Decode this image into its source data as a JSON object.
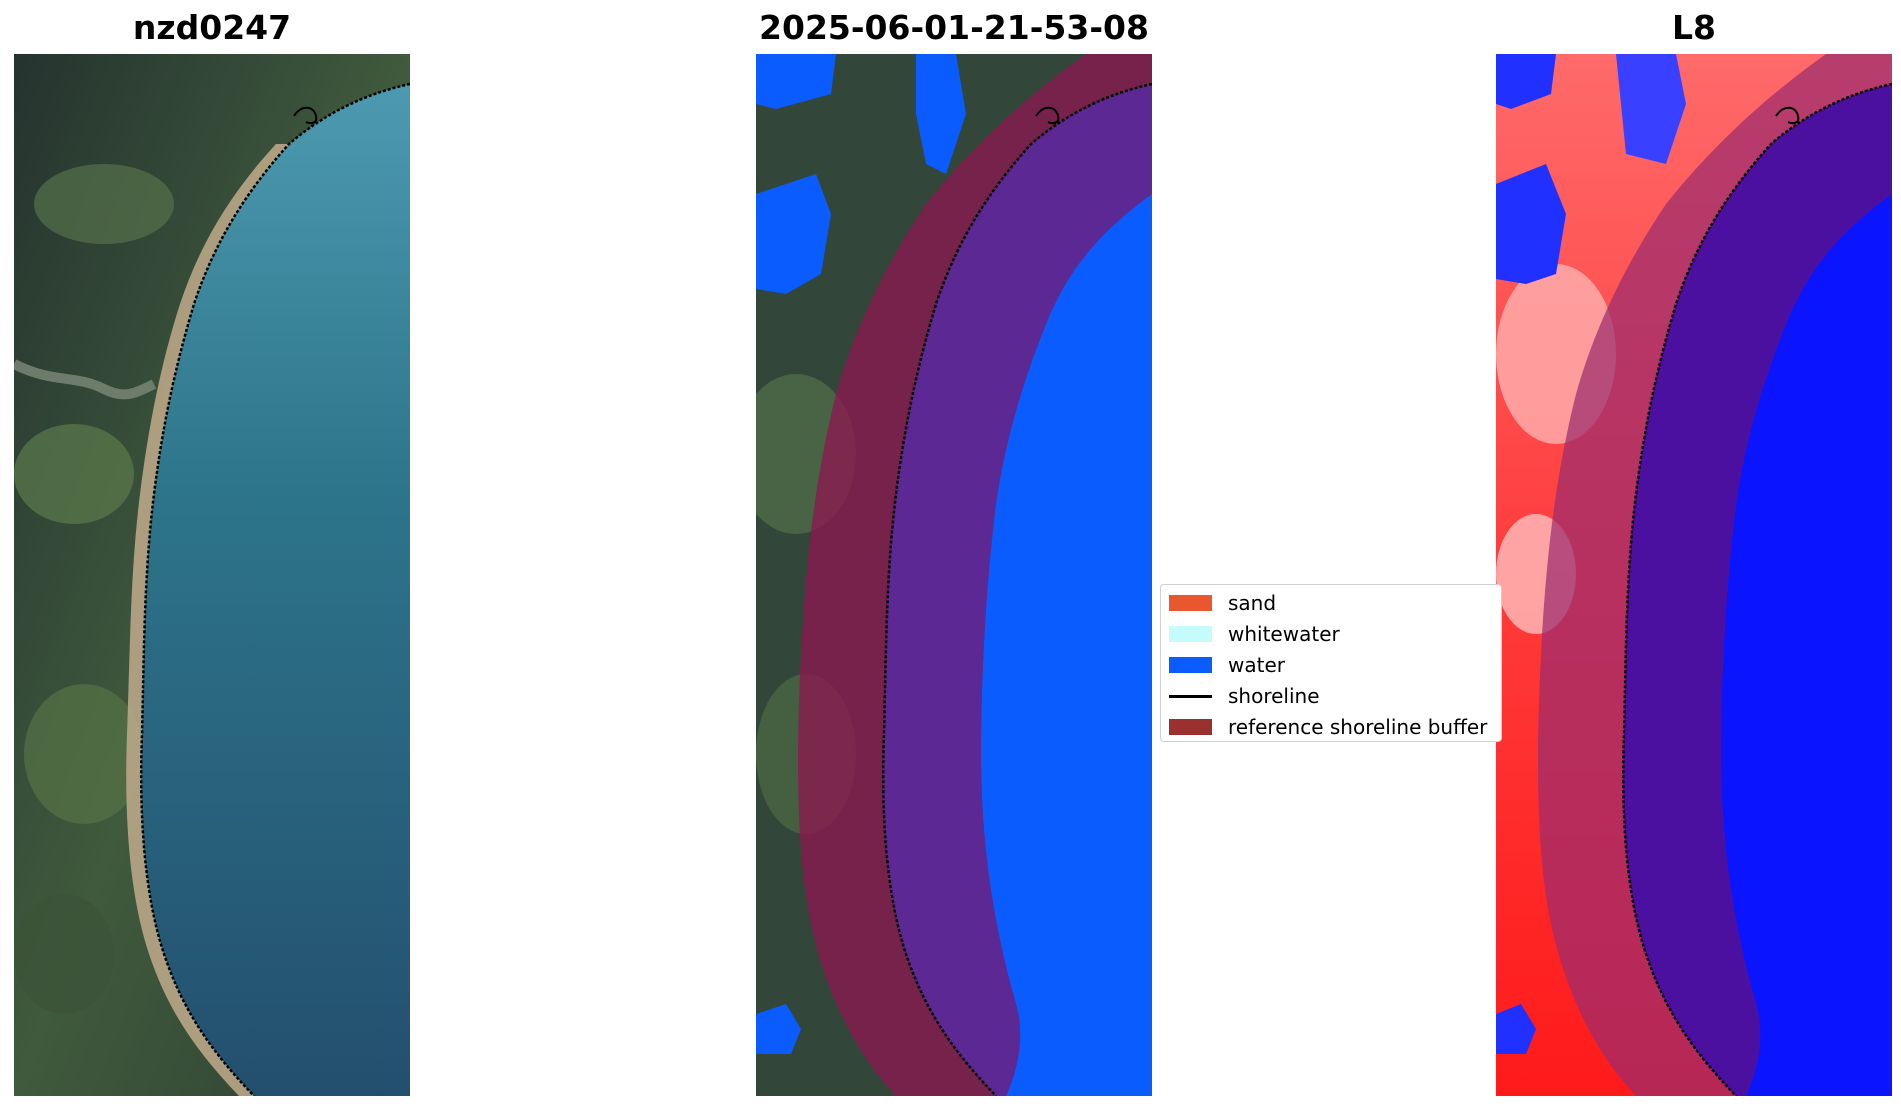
{
  "panels": [
    {
      "title": "nzd0247"
    },
    {
      "title": "2025-06-01-21-53-08"
    },
    {
      "title": "L8"
    }
  ],
  "legend": {
    "items": [
      {
        "label": "sand",
        "color": "#e8572e",
        "kind": "patch"
      },
      {
        "label": "whitewater",
        "color": "#c6fbfb",
        "kind": "patch"
      },
      {
        "label": "water",
        "color": "#0a5cff",
        "kind": "patch"
      },
      {
        "label": "shoreline",
        "color": "#000000",
        "kind": "line"
      },
      {
        "label": "reference shoreline buffer",
        "color": "#9b3030",
        "kind": "patch"
      }
    ]
  },
  "colors": {
    "land_dark": "#2c3a36",
    "land_green": "#4d6b47",
    "sea": "#2a6f86",
    "sand_beach": "#b7a485",
    "water_class": "#0a5cff",
    "buffer_overlay": "#8a1850",
    "buffer_on_water": "#5a2896",
    "mndwi_red": "#ff2a2a",
    "mndwi_blue": "#0a14ff"
  }
}
